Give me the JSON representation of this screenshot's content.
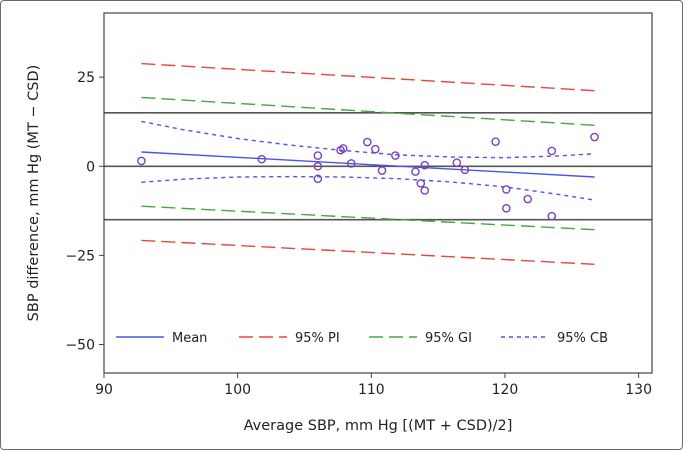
{
  "chart_data": {
    "type": "scatter",
    "title": "",
    "xlabel": "Average SBP, mm Hg [(MT + CSD)/2]",
    "ylabel": "SBP difference, mm Hg (MT − CSD)",
    "xlim": [
      90,
      131
    ],
    "ylim": [
      -58,
      43
    ],
    "xticks": [
      90,
      100,
      110,
      120,
      130
    ],
    "yticks": [
      25,
      0,
      -25,
      -50
    ],
    "ytick_labels": [
      "25",
      "0",
      "−25",
      "−50"
    ],
    "grid": false,
    "hlines": [
      15,
      0,
      -15
    ],
    "hline_color": "#555555",
    "points": [
      {
        "x": 92.8,
        "y": 1.5
      },
      {
        "x": 101.8,
        "y": 2
      },
      {
        "x": 106,
        "y": 3
      },
      {
        "x": 106,
        "y": 0
      },
      {
        "x": 106,
        "y": -3.5
      },
      {
        "x": 107.7,
        "y": 4.5
      },
      {
        "x": 107.9,
        "y": 5
      },
      {
        "x": 108.5,
        "y": 0.8
      },
      {
        "x": 109.7,
        "y": 6.8
      },
      {
        "x": 110.3,
        "y": 4.8
      },
      {
        "x": 110.8,
        "y": -1.2
      },
      {
        "x": 111.8,
        "y": 3
      },
      {
        "x": 113.3,
        "y": -1.5
      },
      {
        "x": 113.7,
        "y": -4.8
      },
      {
        "x": 114,
        "y": 0.3
      },
      {
        "x": 114,
        "y": -6.8
      },
      {
        "x": 116.4,
        "y": 1
      },
      {
        "x": 117,
        "y": -1
      },
      {
        "x": 119.3,
        "y": 6.9
      },
      {
        "x": 120.1,
        "y": -6.5
      },
      {
        "x": 120.1,
        "y": -11.8
      },
      {
        "x": 121.7,
        "y": -9.2
      },
      {
        "x": 123.5,
        "y": 4.3
      },
      {
        "x": 123.5,
        "y": -14
      },
      {
        "x": 126.7,
        "y": 8.2
      }
    ],
    "point_color": "#7a43b6",
    "series": [
      {
        "name": "Mean",
        "style": "solid",
        "color": "#4a55e8",
        "x": [
          92.8,
          126.7
        ],
        "y": [
          4,
          -3
        ]
      },
      {
        "name": "95% PI",
        "style": "dashed",
        "color": "#e8453c",
        "x": [
          92.8,
          126.7
        ],
        "y_upper": [
          28.8,
          21.2
        ],
        "y_lower": [
          -20.8,
          -27.5
        ]
      },
      {
        "name": "95% GI",
        "style": "dashed",
        "color": "#45a845",
        "x": [
          92.8,
          126.7
        ],
        "y_upper": [
          19.3,
          11.5
        ],
        "y_lower": [
          -11.2,
          -17.8
        ]
      },
      {
        "name": "95% CB",
        "style": "dotted",
        "color": "#4a55e8",
        "x": [
          92.8,
          96,
          100,
          104,
          108,
          112,
          116,
          120,
          124,
          126.7
        ],
        "y_upper": [
          12.6,
          10.2,
          7.8,
          5.9,
          4.4,
          3.2,
          2.6,
          2.4,
          2.9,
          3.5
        ],
        "y_lower": [
          -4.5,
          -3.6,
          -3.0,
          -2.9,
          -3.0,
          -3.5,
          -4.4,
          -5.8,
          -7.9,
          -9.5
        ]
      }
    ],
    "legend_position": "bottom"
  }
}
